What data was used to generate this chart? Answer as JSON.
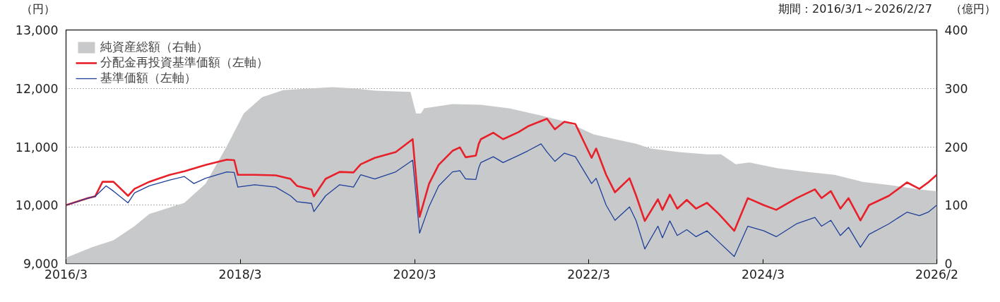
{
  "chart_data": {
    "type": "line",
    "ylabel": "（円）",
    "y2label": "（億円）",
    "annotations": [
      "期間：2016/3/1～2026/2/27"
    ],
    "xlim": [
      "2016-03-01",
      "2026-02-27"
    ],
    "xticks": [
      {
        "value": "2016-03-01",
        "label": "2016/3"
      },
      {
        "value": "2018-03-01",
        "label": "2018/3"
      },
      {
        "value": "2020-03-01",
        "label": "2020/3"
      },
      {
        "value": "2022-03-01",
        "label": "2022/3"
      },
      {
        "value": "2024-03-01",
        "label": "2024/3"
      },
      {
        "value": "2026-02-27",
        "label": "2026/2"
      }
    ],
    "ylim": [
      9000,
      13000
    ],
    "yticks": [
      {
        "value": 9000,
        "label": "9,000"
      },
      {
        "value": 10000,
        "label": "10,000"
      },
      {
        "value": 11000,
        "label": "11,000"
      },
      {
        "value": 12000,
        "label": "12,000"
      },
      {
        "value": 13000,
        "label": "13,000"
      }
    ],
    "y2lim": [
      0,
      400
    ],
    "y2ticks": [
      0,
      100,
      200,
      300,
      400
    ],
    "grid": "y",
    "legend": "top left",
    "series": [
      {
        "name": "純資産総額（右軸）",
        "type": "area",
        "axis": "y2",
        "color": "#c8c9ca",
        "x": [
          "2016-03-01",
          "2016-06-19",
          "2016-09-16",
          "2016-12-13",
          "2017-02-13",
          "2017-04-10",
          "2017-07-10",
          "2017-10-07",
          "2018-01-04",
          "2018-03-16",
          "2018-06-01",
          "2018-08-28",
          "2018-12-25",
          "2019-03-22",
          "2019-06-19",
          "2019-09-16",
          "2020-02-13",
          "2020-03-07",
          "2020-03-28",
          "2020-04-10",
          "2020-08-07",
          "2020-12-04",
          "2021-04-01",
          "2021-07-28",
          "2021-11-25",
          "2022-03-22",
          "2022-06-19",
          "2022-09-16",
          "2022-11-16",
          "2023-03-13",
          "2023-07-10",
          "2023-09-07",
          "2023-11-07",
          "2024-01-04",
          "2024-05-01",
          "2024-08-28",
          "2024-12-25",
          "2025-04-22",
          "2025-08-19",
          "2025-12-16",
          "2026-02-27"
        ],
        "values": [
          10,
          28,
          40,
          64,
          85,
          92,
          104,
          137,
          201,
          257,
          285,
          297,
          300,
          302,
          300,
          296,
          294,
          257,
          257,
          266,
          273,
          272,
          266,
          255,
          243,
          221,
          213,
          205,
          197,
          191,
          187,
          187,
          170,
          173,
          163,
          157,
          152,
          140,
          134,
          127,
          124
        ]
      },
      {
        "name": "分配金再投資基準価額（左軸）",
        "color": "#e8202a",
        "x": [
          "2016-03-01",
          "2016-06-01",
          "2016-07-01",
          "2016-08-01",
          "2016-09-16",
          "2016-11-16",
          "2016-12-13",
          "2017-02-13",
          "2017-05-10",
          "2017-07-10",
          "2017-10-07",
          "2018-01-04",
          "2018-02-04",
          "2018-02-19",
          "2018-05-01",
          "2018-07-28",
          "2018-09-28",
          "2018-10-25",
          "2018-12-25",
          "2019-01-04",
          "2019-02-22",
          "2019-04-22",
          "2019-06-19",
          "2019-07-19",
          "2019-09-16",
          "2019-12-13",
          "2020-02-22",
          "2020-03-22",
          "2020-05-01",
          "2020-06-10",
          "2020-08-07",
          "2020-09-07",
          "2020-10-01",
          "2020-11-13",
          "2020-11-25",
          "2020-12-04",
          "2021-01-25",
          "2021-03-07",
          "2021-05-10",
          "2021-06-19",
          "2021-09-07",
          "2021-10-10",
          "2021-11-19",
          "2022-01-04",
          "2022-03-13",
          "2022-04-01",
          "2022-05-13",
          "2022-06-19",
          "2022-08-19",
          "2022-09-16",
          "2022-10-22",
          "2022-12-16",
          "2023-01-04",
          "2023-02-04",
          "2023-03-07",
          "2023-04-16",
          "2023-05-25",
          "2023-07-10",
          "2023-08-28",
          "2023-11-01",
          "2023-12-28",
          "2024-03-04",
          "2024-04-25",
          "2024-07-19",
          "2024-10-04",
          "2024-11-01",
          "2024-12-10",
          "2025-01-19",
          "2025-02-22",
          "2025-04-13",
          "2025-05-19",
          "2025-08-10",
          "2025-10-25",
          "2025-12-16",
          "2026-01-22",
          "2026-02-27"
        ],
        "values": [
          10000,
          10120,
          10150,
          10400,
          10400,
          10160,
          10280,
          10400,
          10520,
          10580,
          10690,
          10780,
          10770,
          10520,
          10520,
          10510,
          10450,
          10330,
          10270,
          10150,
          10450,
          10570,
          10560,
          10700,
          10810,
          10910,
          11130,
          9800,
          10370,
          10690,
          10930,
          10990,
          10820,
          10850,
          11050,
          11130,
          11240,
          11130,
          11250,
          11350,
          11480,
          11300,
          11430,
          11390,
          10810,
          10970,
          10520,
          10220,
          10460,
          10160,
          9730,
          10100,
          9920,
          10180,
          9940,
          10090,
          9940,
          10040,
          9850,
          9560,
          10120,
          10000,
          9920,
          10120,
          10270,
          10120,
          10240,
          9940,
          10120,
          9740,
          10000,
          10160,
          10390,
          10280,
          10390,
          10520
        ]
      },
      {
        "name": "基準価額（左軸）",
        "color": "#1f3f9a",
        "x": [
          "2016-03-01",
          "2016-06-01",
          "2016-07-01",
          "2016-08-16",
          "2016-09-16",
          "2016-11-16",
          "2016-12-13",
          "2017-02-13",
          "2017-05-10",
          "2017-07-10",
          "2017-08-19",
          "2017-10-07",
          "2018-01-04",
          "2018-02-04",
          "2018-02-19",
          "2018-05-01",
          "2018-07-28",
          "2018-09-28",
          "2018-10-25",
          "2018-12-25",
          "2019-01-04",
          "2019-02-22",
          "2019-04-22",
          "2019-06-19",
          "2019-07-19",
          "2019-09-16",
          "2019-12-13",
          "2020-02-22",
          "2020-03-22",
          "2020-05-01",
          "2020-06-10",
          "2020-08-07",
          "2020-09-07",
          "2020-10-01",
          "2020-11-13",
          "2020-11-25",
          "2020-12-04",
          "2021-01-25",
          "2021-03-07",
          "2021-05-10",
          "2021-06-19",
          "2021-08-13",
          "2021-09-07",
          "2021-10-10",
          "2021-11-19",
          "2022-01-04",
          "2022-03-13",
          "2022-04-01",
          "2022-05-13",
          "2022-06-19",
          "2022-08-19",
          "2022-09-16",
          "2022-10-22",
          "2022-12-16",
          "2023-01-04",
          "2023-02-04",
          "2023-03-07",
          "2023-04-16",
          "2023-05-25",
          "2023-07-10",
          "2023-08-28",
          "2023-11-01",
          "2023-12-28",
          "2024-03-04",
          "2024-04-25",
          "2024-07-19",
          "2024-10-04",
          "2024-11-01",
          "2024-12-10",
          "2025-01-19",
          "2025-02-22",
          "2025-04-13",
          "2025-05-19",
          "2025-08-10",
          "2025-10-25",
          "2025-12-16",
          "2026-01-22",
          "2026-02-27"
        ],
        "values": [
          10000,
          10120,
          10150,
          10330,
          10240,
          10040,
          10210,
          10330,
          10430,
          10490,
          10370,
          10460,
          10570,
          10560,
          10310,
          10350,
          10310,
          10160,
          10060,
          10030,
          9890,
          10160,
          10350,
          10310,
          10520,
          10450,
          10570,
          10770,
          9520,
          9980,
          10330,
          10570,
          10590,
          10450,
          10440,
          10640,
          10730,
          10830,
          10730,
          10850,
          10930,
          11050,
          10910,
          10750,
          10890,
          10830,
          10370,
          10460,
          10000,
          9740,
          9970,
          9730,
          9250,
          9640,
          9440,
          9730,
          9480,
          9580,
          9460,
          9560,
          9370,
          9120,
          9640,
          9560,
          9460,
          9680,
          9790,
          9640,
          9740,
          9480,
          9620,
          9280,
          9500,
          9680,
          9880,
          9820,
          9880,
          10000
        ]
      }
    ]
  }
}
